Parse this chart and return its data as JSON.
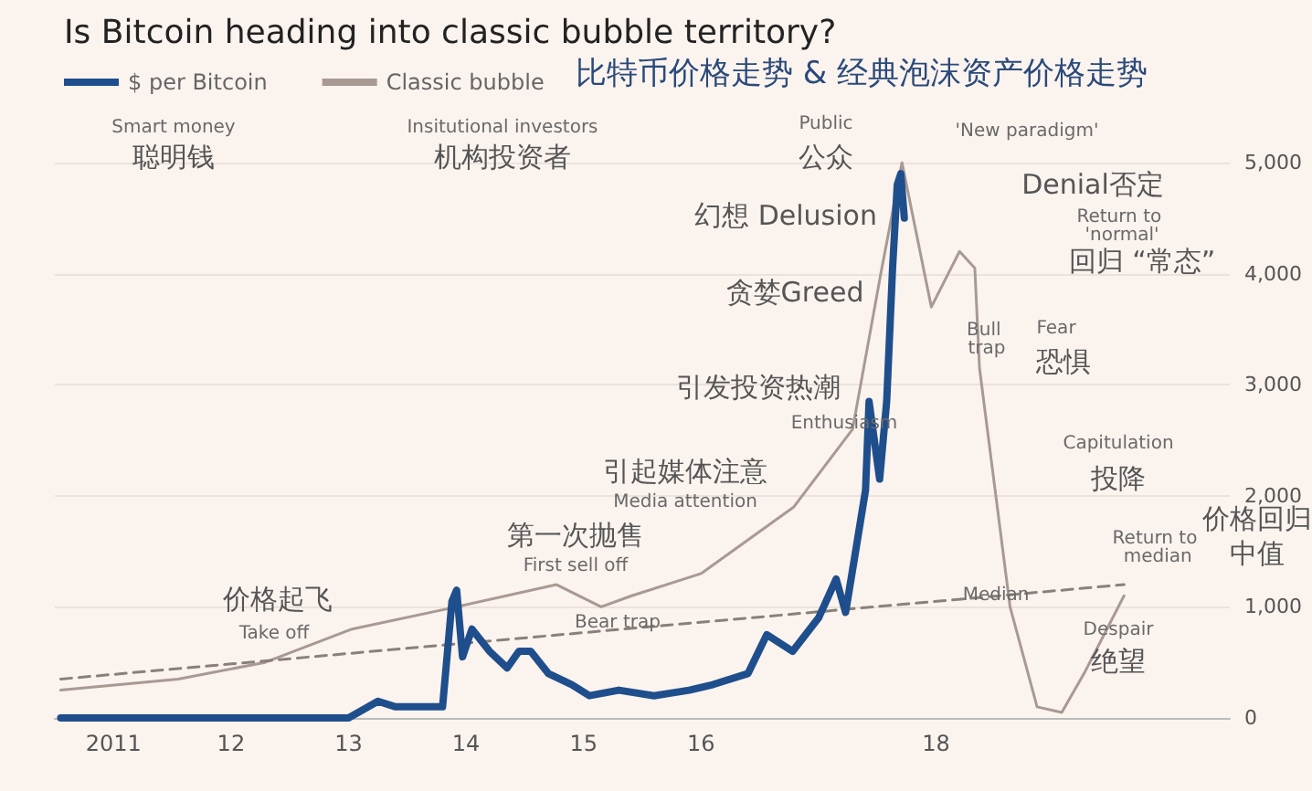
{
  "chart_data": {
    "type": "line",
    "title": "Is Bitcoin heading into classic bubble territory?",
    "subtitle": "比特币价格走势 & 经典泡沫资产价格走势",
    "series": [
      {
        "name": "$ per Bitcoin",
        "color": "#1f4e8c",
        "x": [
          2010.55,
          2011.5,
          2012.5,
          2013.0,
          2013.25,
          2013.4,
          2013.6,
          2013.8,
          2013.88,
          2013.92,
          2013.97,
          2014.05,
          2014.2,
          2014.35,
          2014.45,
          2014.55,
          2014.7,
          2014.9,
          2015.05,
          2015.3,
          2015.6,
          2015.9,
          2016.1,
          2016.4,
          2016.56,
          2016.78,
          2017.0,
          2017.15,
          2017.23,
          2017.3,
          2017.4,
          2017.43,
          2017.52,
          2017.58,
          2017.63,
          2017.67,
          2017.7,
          2017.73
        ],
        "values": [
          0,
          0,
          0,
          0,
          150,
          100,
          100,
          100,
          1050,
          1150,
          550,
          800,
          600,
          450,
          600,
          600,
          400,
          300,
          200,
          250,
          200,
          250,
          300,
          400,
          750,
          600,
          900,
          1250,
          950,
          1400,
          2050,
          2850,
          2150,
          2850,
          4050,
          4800,
          4900,
          4500
        ]
      },
      {
        "name": "Classic bubble",
        "color": "#a89a92",
        "x": [
          2010.55,
          2011.55,
          2012.29,
          2013.03,
          2013.92,
          2014.77,
          2015.15,
          2015.41,
          2016.0,
          2016.79,
          2017.29,
          2017.53,
          2017.71,
          2017.96,
          2018.2,
          2018.33,
          2018.37,
          2018.63,
          2018.86,
          2019.07,
          2019.26,
          2019.6
        ],
        "values": [
          250,
          350,
          500,
          800,
          1000,
          1200,
          1000,
          1100,
          1300,
          1900,
          2600,
          4000,
          5000,
          3700,
          4200,
          4050,
          3150,
          1000,
          100,
          50,
          400,
          1100
        ]
      },
      {
        "color": "#8a807a",
        "line_style": "dashed",
        "x": [
          2010.55,
          2019.6
        ],
        "values": [
          350,
          1200
        ]
      }
    ],
    "xlim": [
      2010.5,
      2020.5
    ],
    "xticks": [
      2011,
      {
        "value": 2012,
        "label": "12"
      },
      {
        "value": 2013,
        "label": "13"
      },
      {
        "value": 2014,
        "label": "14"
      },
      {
        "value": 2015,
        "label": "15"
      },
      {
        "value": 2016,
        "label": "16"
      },
      {
        "value": 2018,
        "label": "18"
      }
    ],
    "ylim": [
      0,
      5000
    ],
    "yticks": [
      0,
      {
        "value": 1000,
        "label": "1,000"
      },
      {
        "value": 2000,
        "label": "2,000"
      },
      {
        "value": 3000,
        "label": "3,000"
      },
      {
        "value": 4000,
        "label": "4,000"
      },
      {
        "value": 5000,
        "label": "5,000"
      }
    ],
    "grid": "y",
    "legend": "top left",
    "marker": "none",
    "line_style": "solid",
    "annotations": [
      "Smart money",
      "聪明钱",
      "Insitutional investors",
      "机构投资者",
      "Public",
      "公众",
      "'New paradigm'",
      "Denial否定",
      "幻想 Delusion",
      "Return to 'normal'",
      "回归 “常态”",
      "贪婪Greed",
      "Bull trap",
      "Fear",
      "恐惧",
      "引发投资热潮",
      "Enthusiasm",
      "Capitulation",
      "投降",
      "引起媒体注意",
      "Media attention",
      "价格回归",
      "中值",
      "Return to median",
      "第一次抛售",
      "First sell off",
      "价格起飞",
      "Take off",
      "Bear trap",
      "Median",
      "Despair",
      "绝望"
    ]
  }
}
